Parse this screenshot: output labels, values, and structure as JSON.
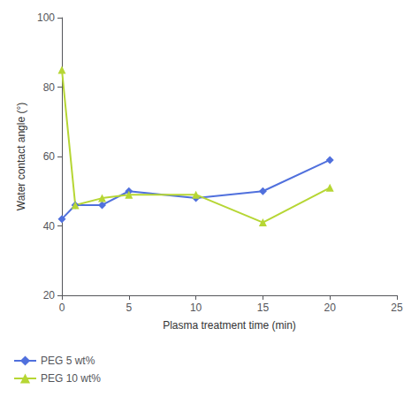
{
  "chart_data": {
    "type": "line",
    "xlabel": "Plasma treatment time (min)",
    "ylabel": "Water contact angle (°)",
    "x": [
      0,
      1,
      3,
      5,
      10,
      15,
      20
    ],
    "series": [
      {
        "name": "PEG 5 wt%",
        "marker": "diamond",
        "values": [
          42,
          46,
          46,
          50,
          48,
          50,
          59
        ]
      },
      {
        "name": "PEG 10 wt%",
        "marker": "triangle",
        "values": [
          85,
          46,
          48,
          49,
          49,
          41,
          51
        ]
      }
    ],
    "xlim": [
      0,
      25
    ],
    "ylim": [
      20,
      100
    ],
    "xticks": [
      0,
      5,
      10,
      15,
      20,
      25
    ],
    "yticks": [
      20,
      40,
      60,
      80,
      100
    ],
    "grid": false,
    "legend": "lower left"
  }
}
